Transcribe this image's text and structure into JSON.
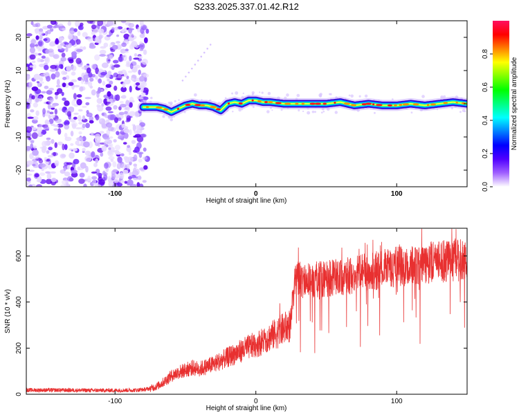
{
  "chart_data": [
    {
      "type": "heatmap",
      "title": "S233.2025.337.01.42.R12",
      "xlabel": "Height of straight line (km)",
      "ylabel": "Frequency (Hz)",
      "xlim": [
        -163,
        150
      ],
      "ylim": [
        -25,
        25
      ],
      "xticks": [
        {
          "value": -100,
          "label": "-100"
        },
        {
          "value": 0,
          "label": "0"
        },
        {
          "value": 100,
          "label": "100"
        }
      ],
      "yticks": [
        {
          "value": -20,
          "label": "-20"
        },
        {
          "value": -10,
          "label": "-10"
        },
        {
          "value": 0,
          "label": "0"
        },
        {
          "value": 10,
          "label": "10"
        },
        {
          "value": 20,
          "label": "20"
        }
      ],
      "noise_region_x": [
        -163,
        -80
      ],
      "signal_start_x": -80,
      "ridge": {
        "x": [
          -80,
          -70,
          -65,
          -60,
          -55,
          -50,
          -45,
          -40,
          -35,
          -30,
          -25,
          -20,
          -15,
          -10,
          -5,
          0,
          5,
          10,
          20,
          30,
          40,
          50,
          60,
          70,
          80,
          90,
          100,
          110,
          120,
          130,
          140,
          150
        ],
        "freq": [
          -1,
          -1,
          -1.5,
          -2.5,
          -1.5,
          -0.5,
          0,
          -0.5,
          -0.5,
          -1,
          -2,
          0,
          0.5,
          0,
          1,
          1,
          0.5,
          0.5,
          0,
          0,
          0,
          0,
          0.5,
          -0.5,
          0,
          -0.5,
          -0.5,
          0,
          -0.5,
          0,
          0.5,
          0
        ]
      },
      "colorbar": {
        "label": "Normalized spectral amplitude",
        "range": [
          0,
          1
        ],
        "ticks": [
          {
            "value": 0.0,
            "label": "0.0"
          },
          {
            "value": 0.2,
            "label": "0.2"
          },
          {
            "value": 0.4,
            "label": "0.4"
          },
          {
            "value": 0.6,
            "label": "0.6"
          },
          {
            "value": 0.8,
            "label": "0.8"
          }
        ],
        "colors": [
          "#ffffff",
          "#a060ff",
          "#5000ff",
          "#0000ff",
          "#0080ff",
          "#00ffff",
          "#00ff80",
          "#00ff00",
          "#80ff00",
          "#ffff00",
          "#ff8000",
          "#ff0000",
          "#ff1060"
        ]
      }
    },
    {
      "type": "line",
      "xlabel": "Height of straight line (km)",
      "ylabel": "SNR (10 * v/v)",
      "xlim": [
        -163,
        150
      ],
      "ylim": [
        0,
        720
      ],
      "xticks": [
        {
          "value": -100,
          "label": "-100"
        },
        {
          "value": 0,
          "label": "0"
        },
        {
          "value": 100,
          "label": "100"
        }
      ],
      "yticks": [
        {
          "value": 0,
          "label": "0"
        },
        {
          "value": 200,
          "label": "200"
        },
        {
          "value": 400,
          "label": "400"
        },
        {
          "value": 600,
          "label": "600"
        }
      ],
      "series": [
        {
          "name": "SNR",
          "color": "#e83030",
          "x": [
            -163,
            -140,
            -120,
            -100,
            -85,
            -80,
            -75,
            -70,
            -65,
            -60,
            -55,
            -50,
            -45,
            -40,
            -35,
            -30,
            -25,
            -20,
            -15,
            -10,
            -5,
            0,
            5,
            10,
            15,
            20,
            25,
            26,
            28,
            30,
            35,
            40,
            50,
            60,
            70,
            80,
            90,
            100,
            110,
            120,
            130,
            140,
            150
          ],
          "y": [
            18,
            18,
            17,
            17,
            18,
            20,
            25,
            35,
            55,
            80,
            95,
            105,
            115,
            110,
            120,
            130,
            145,
            160,
            175,
            190,
            205,
            215,
            230,
            250,
            265,
            285,
            300,
            420,
            490,
            500,
            490,
            495,
            500,
            510,
            520,
            530,
            545,
            555,
            560,
            570,
            575,
            580,
            580
          ]
        }
      ]
    }
  ]
}
